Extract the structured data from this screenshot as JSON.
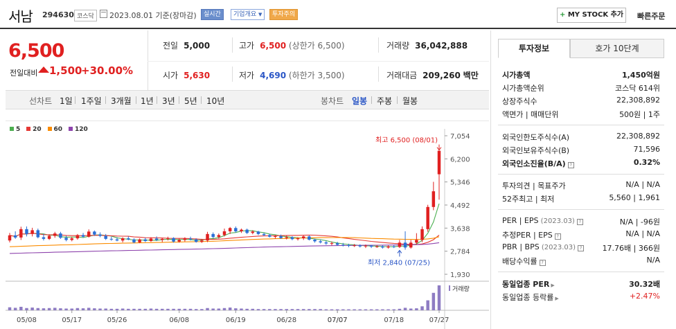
{
  "header": {
    "name": "서남",
    "code": "294630",
    "market": "코스닥",
    "date": "2023.08.01 기준(장마감)",
    "badges": [
      "실시간",
      "기업개요",
      "투자주의"
    ],
    "mystock": "MY STOCK 추가",
    "quick_order": "빠른주문"
  },
  "summary": {
    "price": "6,500",
    "change_label": "전일대비",
    "change": "1,500",
    "change_pct": "+30.00%",
    "prev_label": "전일",
    "prev": "5,000",
    "high_label": "고가",
    "high": "6,500",
    "high_note": "(상한가 6,500)",
    "volume_label": "거래량",
    "volume": "36,042,888",
    "open_label": "시가",
    "open": "5,630",
    "low_label": "저가",
    "low": "4,690",
    "low_note": "(하한가 3,500)",
    "amount_label": "거래대금",
    "amount": "209,260",
    "amount_unit": "백만"
  },
  "period_bar": {
    "line_label": "선차트",
    "line_periods": [
      "1일",
      "1주일",
      "3개월",
      "1년",
      "3년",
      "5년",
      "10년"
    ],
    "candle_label": "봉차트",
    "candle_periods": [
      "일봉",
      "주봉",
      "월봉"
    ],
    "selected": "일봉"
  },
  "chart_data": {
    "type": "candlestick",
    "legend": [
      {
        "name": "5",
        "color": "#4caf50"
      },
      {
        "name": "20",
        "color": "#e53935"
      },
      {
        "name": "60",
        "color": "#fb8c00"
      },
      {
        "name": "120",
        "color": "#8e44ad"
      }
    ],
    "y_ticks": [
      "7,054",
      "6,200",
      "5,346",
      "4,492",
      "3,638",
      "2,784",
      "1,930"
    ],
    "ylim": [
      1930,
      7054
    ],
    "x_ticks": [
      "05/08",
      "05/17",
      "05/26",
      "06/08",
      "06/19",
      "06/28",
      "07/07",
      "07/07",
      "07/18",
      "07/27"
    ],
    "high_annotation": "최고 6,500 (08/01)",
    "low_annotation": "최저 2,840 (07/25)",
    "volume_label": "거래량",
    "candles": [
      {
        "o": 3180,
        "h": 3460,
        "l": 3110,
        "c": 3370
      },
      {
        "o": 3370,
        "h": 3520,
        "l": 3240,
        "c": 3290
      },
      {
        "o": 3290,
        "h": 3690,
        "l": 3200,
        "c": 3600
      },
      {
        "o": 3600,
        "h": 3700,
        "l": 3330,
        "c": 3420
      },
      {
        "o": 3420,
        "h": 3650,
        "l": 3330,
        "c": 3560
      },
      {
        "o": 3560,
        "h": 3620,
        "l": 3260,
        "c": 3300
      },
      {
        "o": 3300,
        "h": 3420,
        "l": 3180,
        "c": 3240
      },
      {
        "o": 3240,
        "h": 3410,
        "l": 3200,
        "c": 3350
      },
      {
        "o": 3350,
        "h": 3500,
        "l": 3280,
        "c": 3440
      },
      {
        "o": 3440,
        "h": 3500,
        "l": 3240,
        "c": 3280
      },
      {
        "o": 3280,
        "h": 3360,
        "l": 3150,
        "c": 3200
      },
      {
        "o": 3200,
        "h": 3320,
        "l": 3150,
        "c": 3260
      },
      {
        "o": 3260,
        "h": 3420,
        "l": 3210,
        "c": 3380
      },
      {
        "o": 3380,
        "h": 3460,
        "l": 3280,
        "c": 3320
      },
      {
        "o": 3320,
        "h": 3590,
        "l": 3290,
        "c": 3510
      },
      {
        "o": 3510,
        "h": 3550,
        "l": 3350,
        "c": 3400
      },
      {
        "o": 3400,
        "h": 3480,
        "l": 3300,
        "c": 3350
      },
      {
        "o": 3350,
        "h": 3420,
        "l": 3200,
        "c": 3240
      },
      {
        "o": 3240,
        "h": 3320,
        "l": 3170,
        "c": 3220
      },
      {
        "o": 3220,
        "h": 3300,
        "l": 3150,
        "c": 3180
      },
      {
        "o": 3180,
        "h": 3300,
        "l": 3110,
        "c": 3260
      },
      {
        "o": 3260,
        "h": 3330,
        "l": 3190,
        "c": 3220
      },
      {
        "o": 3220,
        "h": 3260,
        "l": 3080,
        "c": 3110
      },
      {
        "o": 3110,
        "h": 3260,
        "l": 3080,
        "c": 3220
      },
      {
        "o": 3220,
        "h": 3280,
        "l": 3120,
        "c": 3160
      },
      {
        "o": 3160,
        "h": 3300,
        "l": 3130,
        "c": 3250
      },
      {
        "o": 3250,
        "h": 3330,
        "l": 3160,
        "c": 3200
      },
      {
        "o": 3200,
        "h": 3280,
        "l": 3120,
        "c": 3240
      },
      {
        "o": 3240,
        "h": 3320,
        "l": 3180,
        "c": 3270
      },
      {
        "o": 3270,
        "h": 3300,
        "l": 3100,
        "c": 3140
      },
      {
        "o": 3140,
        "h": 3260,
        "l": 3100,
        "c": 3200
      },
      {
        "o": 3200,
        "h": 3300,
        "l": 3140,
        "c": 3250
      },
      {
        "o": 3250,
        "h": 3320,
        "l": 3180,
        "c": 3220
      },
      {
        "o": 3220,
        "h": 3260,
        "l": 3100,
        "c": 3130
      },
      {
        "o": 3130,
        "h": 3240,
        "l": 3090,
        "c": 3180
      },
      {
        "o": 3180,
        "h": 3500,
        "l": 3120,
        "c": 3420
      },
      {
        "o": 3420,
        "h": 3480,
        "l": 3260,
        "c": 3310
      },
      {
        "o": 3310,
        "h": 3440,
        "l": 3250,
        "c": 3380
      },
      {
        "o": 3380,
        "h": 3620,
        "l": 3330,
        "c": 3520
      },
      {
        "o": 3520,
        "h": 3680,
        "l": 3420,
        "c": 3640
      },
      {
        "o": 3640,
        "h": 3700,
        "l": 3470,
        "c": 3520
      },
      {
        "o": 3520,
        "h": 3620,
        "l": 3460,
        "c": 3580
      },
      {
        "o": 3580,
        "h": 3620,
        "l": 3420,
        "c": 3460
      },
      {
        "o": 3460,
        "h": 3560,
        "l": 3410,
        "c": 3510
      },
      {
        "o": 3510,
        "h": 3540,
        "l": 3380,
        "c": 3420
      },
      {
        "o": 3420,
        "h": 3470,
        "l": 3340,
        "c": 3380
      },
      {
        "o": 3380,
        "h": 3430,
        "l": 3290,
        "c": 3320
      },
      {
        "o": 3320,
        "h": 3380,
        "l": 3250,
        "c": 3340
      },
      {
        "o": 3340,
        "h": 3400,
        "l": 3240,
        "c": 3270
      },
      {
        "o": 3270,
        "h": 3360,
        "l": 3220,
        "c": 3300
      },
      {
        "o": 3300,
        "h": 3340,
        "l": 3190,
        "c": 3230
      },
      {
        "o": 3230,
        "h": 3300,
        "l": 3180,
        "c": 3260
      },
      {
        "o": 3260,
        "h": 3360,
        "l": 3200,
        "c": 3330
      },
      {
        "o": 3330,
        "h": 3370,
        "l": 3180,
        "c": 3210
      },
      {
        "o": 3210,
        "h": 3250,
        "l": 3100,
        "c": 3150
      },
      {
        "o": 3150,
        "h": 3220,
        "l": 3070,
        "c": 3110
      },
      {
        "o": 3110,
        "h": 3170,
        "l": 3020,
        "c": 3070
      },
      {
        "o": 3070,
        "h": 3140,
        "l": 3000,
        "c": 3080
      },
      {
        "o": 3080,
        "h": 3130,
        "l": 2980,
        "c": 3020
      },
      {
        "o": 3020,
        "h": 3090,
        "l": 2960,
        "c": 3010
      },
      {
        "o": 3010,
        "h": 3060,
        "l": 2930,
        "c": 2980
      },
      {
        "o": 2980,
        "h": 3050,
        "l": 2940,
        "c": 3000
      },
      {
        "o": 3000,
        "h": 3040,
        "l": 2920,
        "c": 2960
      },
      {
        "o": 2960,
        "h": 3030,
        "l": 2900,
        "c": 2990
      },
      {
        "o": 2990,
        "h": 3020,
        "l": 2900,
        "c": 2950
      },
      {
        "o": 2950,
        "h": 3010,
        "l": 2910,
        "c": 2960
      },
      {
        "o": 2960,
        "h": 3010,
        "l": 2880,
        "c": 2920
      },
      {
        "o": 2920,
        "h": 3000,
        "l": 2880,
        "c": 2960
      },
      {
        "o": 2960,
        "h": 3010,
        "l": 2900,
        "c": 2940
      },
      {
        "o": 2940,
        "h": 3200,
        "l": 2900,
        "c": 3100
      },
      {
        "o": 3100,
        "h": 3520,
        "l": 2840,
        "c": 2920
      },
      {
        "o": 2920,
        "h": 3200,
        "l": 2880,
        "c": 3100
      },
      {
        "o": 3100,
        "h": 3450,
        "l": 3020,
        "c": 3200
      },
      {
        "o": 3200,
        "h": 3700,
        "l": 3120,
        "c": 3600
      },
      {
        "o": 3600,
        "h": 4500,
        "l": 3500,
        "c": 4420
      },
      {
        "o": 4420,
        "h": 5350,
        "l": 4300,
        "c": 5000
      },
      {
        "o": 5630,
        "h": 6500,
        "l": 4690,
        "c": 6500
      }
    ],
    "volumes": [
      12,
      10,
      14,
      9,
      11,
      9,
      8,
      9,
      10,
      8,
      7,
      7,
      9,
      8,
      10,
      8,
      7,
      7,
      6,
      6,
      7,
      6,
      6,
      6,
      6,
      7,
      6,
      6,
      6,
      6,
      6,
      6,
      6,
      5,
      5,
      9,
      7,
      7,
      9,
      11,
      8,
      7,
      6,
      6,
      5,
      5,
      5,
      5,
      5,
      5,
      5,
      5,
      5,
      5,
      5,
      5,
      4,
      4,
      4,
      4,
      4,
      4,
      4,
      4,
      4,
      4,
      4,
      4,
      4,
      6,
      10,
      7,
      8,
      16,
      40,
      70,
      100
    ]
  },
  "right_panel": {
    "tabs": [
      "투자정보",
      "호가 10단계"
    ],
    "group1": [
      {
        "k": "시가총액",
        "v": "1,450억원",
        "bold": true
      },
      {
        "k": "시가총액순위",
        "v": "코스닥 614위"
      },
      {
        "k": "상장주식수",
        "v": "22,308,892"
      },
      {
        "k": "액면가 | 매매단위",
        "v": "500원 | 1주"
      }
    ],
    "group2": [
      {
        "k": "외국인한도주식수(A)",
        "v": "22,308,892"
      },
      {
        "k": "외국인보유주식수(B)",
        "v": "71,596"
      },
      {
        "k": "외국인소진율(B/A)",
        "v": "0.32%",
        "bold": true
      }
    ],
    "group3": [
      {
        "k": "투자의견 | 목표주가",
        "v": "N/A | N/A"
      },
      {
        "k": "52주최고 | 최저",
        "v": "5,560 | 1,961"
      }
    ],
    "group4": [
      {
        "k": "PER | EPS",
        "sub": "(2023.03)",
        "v": "N/A | -96원"
      },
      {
        "k": "추정PER | EPS",
        "sub": "",
        "v": "N/A | N/A"
      },
      {
        "k": "PBR | BPS",
        "sub": "(2023.03)",
        "v": "17.76배 | 366원"
      },
      {
        "k": "배당수익률",
        "sub": "",
        "v": "N/A"
      }
    ],
    "group5": [
      {
        "k": "동일업종 PER",
        "v": "30.32배",
        "bold": true
      },
      {
        "k": "동일업종 등락률",
        "v": "+2.47%",
        "red": true
      }
    ]
  }
}
